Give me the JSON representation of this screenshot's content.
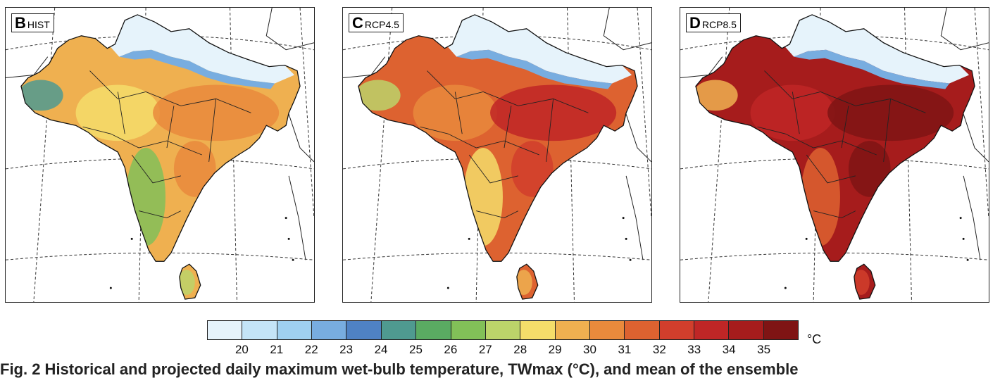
{
  "panels": [
    {
      "letter": "B",
      "scenario": "HIST",
      "fill_level": 0.35
    },
    {
      "letter": "C",
      "scenario": "RCP4.5",
      "fill_level": 0.6
    },
    {
      "letter": "D",
      "scenario": "RCP8.5",
      "fill_level": 0.85
    }
  ],
  "colorbar": {
    "colors": [
      "#e6f3fb",
      "#c4e4f7",
      "#9fd0f0",
      "#78ade0",
      "#4f82c4",
      "#4f9a90",
      "#5aab62",
      "#82c058",
      "#bcd46a",
      "#f5dd6a",
      "#efb050",
      "#e98a3c",
      "#dd6230",
      "#d13e2c",
      "#bf2626",
      "#a61c1c",
      "#7f1414"
    ],
    "ticks": [
      "20",
      "21",
      "22",
      "23",
      "24",
      "25",
      "26",
      "27",
      "28",
      "29",
      "30",
      "31",
      "32",
      "33",
      "34",
      "35"
    ],
    "unit": "°C"
  },
  "caption": "Fig. 2 Historical and projected daily maximum wet-bulb temperature, TWmax (°C), and mean of the ensemble"
}
